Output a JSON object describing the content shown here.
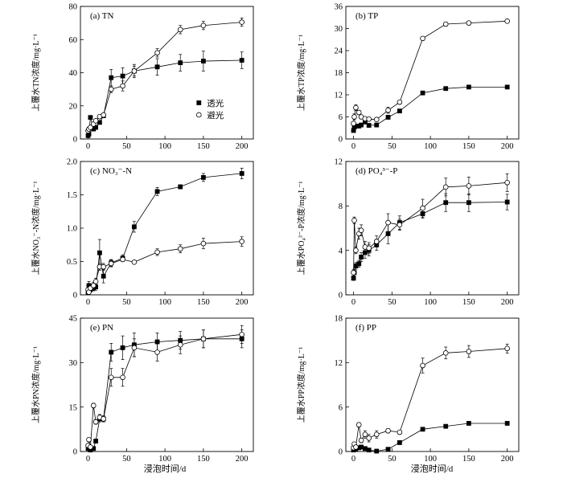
{
  "x_axis_label": "浸泡时间/d",
  "legend": {
    "panel": 0,
    "location": "center-right",
    "entries": [
      {
        "label": "透光",
        "marker": "filled-square"
      },
      {
        "label": "避光",
        "marker": "open-circle"
      }
    ]
  },
  "chart_data": [
    {
      "type": "line",
      "title": "(a) TN",
      "ylabel": "上覆水TN浓度/mg·L⁻¹",
      "xlim": [
        -10,
        215
      ],
      "ylim": [
        0,
        80
      ],
      "xticks": [
        "0",
        "50",
        "100",
        "150",
        "200"
      ],
      "yticks": [
        "0",
        "20",
        "40",
        "60",
        "80"
      ],
      "x": [
        0,
        1,
        3,
        7,
        10,
        15,
        20,
        30,
        45,
        60,
        90,
        120,
        150,
        200
      ],
      "series": [
        {
          "values": [
            2,
            3,
            13,
            6,
            7,
            10,
            14,
            37,
            38,
            41,
            43.5,
            46,
            47,
            47.5
          ],
          "err": [
            0.5,
            0.5,
            1,
            0.5,
            0.5,
            1,
            1,
            5,
            5,
            4,
            5,
            5,
            6,
            5
          ]
        },
        {
          "values": [
            5,
            6,
            7,
            9,
            11,
            13.5,
            14.5,
            30,
            32,
            41,
            52,
            66,
            68.5,
            70.5
          ],
          "err": [
            1,
            1,
            1,
            1,
            1,
            1,
            1,
            2,
            3,
            3,
            2.5,
            2.5,
            2.5,
            2.5
          ]
        }
      ]
    },
    {
      "type": "line",
      "title": "(b) TP",
      "ylabel": "上覆水TP浓度/mg·L⁻¹",
      "xlim": [
        -10,
        215
      ],
      "ylim": [
        0,
        36
      ],
      "xticks": [
        "0",
        "50",
        "100",
        "150",
        "200"
      ],
      "yticks": [
        "0",
        "6",
        "12",
        "18",
        "24",
        "30",
        "36"
      ],
      "x": [
        0,
        1,
        3,
        7,
        10,
        15,
        20,
        30,
        45,
        60,
        90,
        120,
        150,
        200
      ],
      "series": [
        {
          "values": [
            2.3,
            3.2,
            3.5,
            3.5,
            3.8,
            4.6,
            3.7,
            3.8,
            5.9,
            7.6,
            12.5,
            13.7,
            14.1,
            14.1
          ],
          "err": [
            0.3,
            0.3,
            0.3,
            0.3,
            0.3,
            0.4,
            0.3,
            0.3,
            0.5,
            0.5,
            0.4,
            0.5,
            0.4,
            0.4
          ]
        },
        {
          "values": [
            4.2,
            6.0,
            8.5,
            7.2,
            6.0,
            5.5,
            5.4,
            5.3,
            7.8,
            10.0,
            27.3,
            31.2,
            31.5,
            32.0
          ],
          "err": [
            0.5,
            0.8,
            0.8,
            0.6,
            0.5,
            0.5,
            0.4,
            0.4,
            0.8,
            0.5,
            0.5,
            0.5,
            0.5,
            0.4
          ]
        }
      ]
    },
    {
      "type": "line",
      "title": "(c) NO₃⁻-N",
      "ylabel": "上覆水NO₃⁻-N浓度/mg·L⁻¹",
      "xlim": [
        -10,
        215
      ],
      "ylim": [
        0,
        2.0
      ],
      "xticks": [
        "0",
        "50",
        "100",
        "150",
        "200"
      ],
      "yticks": [
        "0",
        "0.5",
        "1.0",
        "1.5",
        "2.0"
      ],
      "x": [
        0,
        1,
        3,
        7,
        10,
        15,
        20,
        30,
        45,
        60,
        90,
        120,
        150,
        200
      ],
      "series": [
        {
          "values": [
            0.03,
            0.14,
            0.08,
            0.1,
            0.12,
            0.63,
            0.28,
            0.48,
            0.55,
            1.02,
            1.55,
            1.62,
            1.76,
            1.82
          ],
          "err": [
            0.02,
            0.06,
            0.04,
            0.04,
            0.05,
            0.2,
            0.1,
            0.05,
            0.05,
            0.08,
            0.06,
            0.03,
            0.06,
            0.08
          ]
        },
        {
          "values": [
            0.08,
            0.04,
            0.1,
            0.14,
            0.2,
            0.42,
            0.42,
            0.47,
            0.53,
            0.49,
            0.64,
            0.69,
            0.77,
            0.8
          ],
          "err": [
            0.03,
            0.02,
            0.03,
            0.05,
            0.05,
            0.05,
            0.05,
            0.05,
            0.03,
            0.02,
            0.05,
            0.06,
            0.08,
            0.07
          ]
        }
      ]
    },
    {
      "type": "line",
      "title": "(d) PO₄³⁻-P",
      "ylabel": "上覆水PO₄³⁻-P浓度/mg·L⁻¹",
      "xlim": [
        -10,
        215
      ],
      "ylim": [
        0,
        12
      ],
      "xticks": [
        "0",
        "50",
        "100",
        "150",
        "200"
      ],
      "yticks": [
        "0",
        "4",
        "8",
        "12"
      ],
      "x": [
        0,
        1,
        3,
        7,
        10,
        15,
        20,
        30,
        45,
        60,
        90,
        120,
        150,
        200
      ],
      "series": [
        {
          "values": [
            1.5,
            2.0,
            2.6,
            2.8,
            3.4,
            3.8,
            4.0,
            4.5,
            5.5,
            6.5,
            7.3,
            8.3,
            8.3,
            8.35
          ],
          "err": [
            0.2,
            0.3,
            0.3,
            0.3,
            0.4,
            0.5,
            0.5,
            0.5,
            0.9,
            0.6,
            0.4,
            0.8,
            0.8,
            0.7
          ]
        },
        {
          "values": [
            2.0,
            6.7,
            4.0,
            5.5,
            5.8,
            4.3,
            4.2,
            4.8,
            6.5,
            6.3,
            7.8,
            9.7,
            9.8,
            10.1
          ],
          "err": [
            0.3,
            0.3,
            0.3,
            0.5,
            0.5,
            0.5,
            0.5,
            0.5,
            0.8,
            0.5,
            0.8,
            0.8,
            0.8,
            0.8
          ]
        }
      ]
    },
    {
      "type": "line",
      "title": "(e) PN",
      "ylabel": "上覆水PN浓度/mg·L⁻¹",
      "xlim": [
        -10,
        215
      ],
      "ylim": [
        0,
        45
      ],
      "xticks": [
        "0",
        "50",
        "100",
        "150",
        "200"
      ],
      "yticks": [
        "0",
        "15",
        "30",
        "45"
      ],
      "x": [
        0,
        1,
        3,
        7,
        10,
        15,
        20,
        30,
        45,
        60,
        90,
        120,
        150,
        200
      ],
      "series": [
        {
          "values": [
            1,
            1.5,
            0.5,
            1.0,
            3.5,
            11,
            11,
            33.5,
            35,
            36,
            37,
            37.5,
            38,
            38
          ],
          "err": [
            0.5,
            0.5,
            0.3,
            0.4,
            0.5,
            1,
            1,
            3,
            4,
            4,
            3,
            3,
            3,
            3
          ]
        },
        {
          "values": [
            2,
            4,
            1.5,
            15.5,
            10,
            11.5,
            11,
            25,
            25,
            35,
            33.5,
            36,
            38,
            39.5
          ],
          "err": [
            0.5,
            0.5,
            0.5,
            0.8,
            0.8,
            1,
            1,
            3,
            3,
            3,
            3,
            3,
            3,
            3
          ]
        }
      ]
    },
    {
      "type": "line",
      "title": "(f) PP",
      "ylabel": "上覆水PP浓度/mg·L⁻¹",
      "xlim": [
        -10,
        215
      ],
      "ylim": [
        0,
        18
      ],
      "xticks": [
        "0",
        "50",
        "100",
        "150",
        "200"
      ],
      "yticks": [
        "0",
        "6",
        "12",
        "18"
      ],
      "x": [
        0,
        1,
        3,
        7,
        10,
        15,
        20,
        30,
        45,
        60,
        90,
        120,
        150,
        200
      ],
      "series": [
        {
          "values": [
            0.2,
            0.4,
            0.3,
            0.5,
            0.6,
            0.4,
            0.2,
            0.05,
            0.3,
            1.2,
            3.0,
            3.4,
            3.8,
            3.8
          ],
          "err": [
            0.1,
            0.1,
            0.1,
            0.1,
            0.1,
            0.1,
            0.1,
            0.05,
            0.1,
            0.2,
            0.2,
            0.2,
            0.2,
            0.2
          ]
        },
        {
          "values": [
            0.5,
            1.0,
            0.6,
            3.6,
            1.5,
            2.3,
            1.8,
            2.3,
            2.8,
            2.6,
            11.6,
            13.3,
            13.5,
            13.9
          ],
          "err": [
            0.2,
            0.2,
            0.2,
            0.3,
            0.3,
            0.5,
            0.5,
            0.5,
            0.3,
            0.2,
            1,
            0.8,
            0.8,
            0.6
          ]
        }
      ]
    }
  ]
}
